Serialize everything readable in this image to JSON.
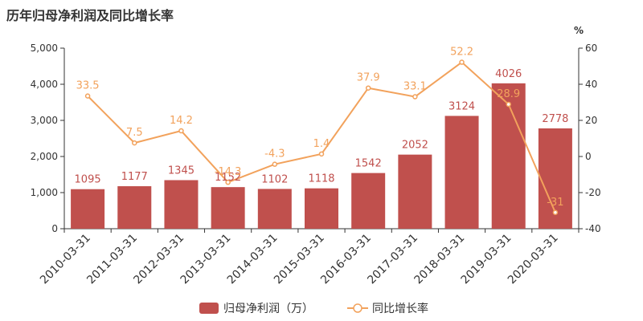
{
  "title": "历年归母净利润及同比增长率",
  "chart_data": {
    "type": "bar",
    "categories": [
      "2010-03-31",
      "2011-03-31",
      "2012-03-31",
      "2013-03-31",
      "2014-03-31",
      "2015-03-31",
      "2016-03-31",
      "2017-03-31",
      "2018-03-31",
      "2019-03-31",
      "2020-03-31"
    ],
    "series": [
      {
        "name": "归母净利润（万）",
        "type": "bar",
        "axis": "left",
        "color": "#c0504d",
        "values": [
          1095,
          1177,
          1345,
          1152,
          1102,
          1118,
          1542,
          2052,
          3124,
          4026,
          2778
        ]
      },
      {
        "name": "同比增长率",
        "type": "line",
        "axis": "right",
        "color": "#f2a25c",
        "values": [
          33.5,
          7.5,
          14.2,
          -14.3,
          -4.3,
          1.4,
          37.9,
          33.1,
          52.2,
          28.9,
          -31
        ]
      }
    ],
    "y_left": {
      "min": 0,
      "max": 5000,
      "ticks": [
        0,
        1000,
        2000,
        3000,
        4000,
        5000
      ],
      "tick_labels": [
        "0",
        "1,000",
        "2,000",
        "3,000",
        "4,000",
        "5,000"
      ]
    },
    "y_right": {
      "min": -40,
      "max": 60,
      "ticks": [
        -40,
        -20,
        0,
        20,
        40,
        60
      ],
      "unit": "%"
    },
    "legend_position": "bottom-center",
    "grid": false
  }
}
